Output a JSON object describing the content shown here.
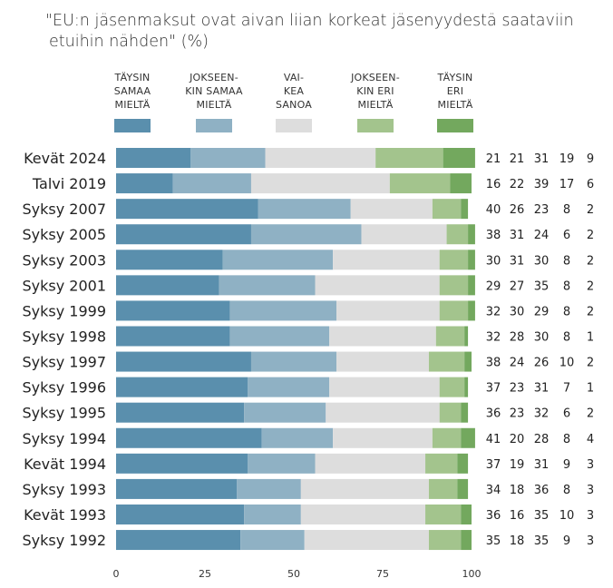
{
  "chart_data": {
    "type": "bar",
    "orientation": "horizontal",
    "stacked": true,
    "title_line1": "\"EU:n jäsenmaksut ovat aivan liian korkeat jäsenyydestä saataviin",
    "title_line2": "etuihin nähden\" (%)",
    "categories": [
      "Kevät 2024",
      "Talvi 2019",
      "Syksy 2007",
      "Syksy 2005",
      "Syksy 2003",
      "Syksy 2001",
      "Syksy 1999",
      "Syksy 1998",
      "Syksy 1997",
      "Syksy 1996",
      "Syksy 1995",
      "Syksy 1994",
      "Kevät 1994",
      "Syksy 1993",
      "Kevät 1993",
      "Syksy 1992"
    ],
    "series": [
      {
        "name": [
          "TÄYSIN",
          "SAMAA",
          "MIELTÄ"
        ],
        "color": "#5a8fad",
        "values": [
          21,
          16,
          40,
          38,
          30,
          29,
          32,
          32,
          38,
          37,
          36,
          41,
          37,
          34,
          36,
          35
        ]
      },
      {
        "name": [
          "JOKSEEN-",
          "KIN SAMAA",
          "MIELTÄ"
        ],
        "color": "#8fb1c4",
        "values": [
          21,
          22,
          26,
          31,
          31,
          27,
          30,
          28,
          24,
          23,
          23,
          20,
          19,
          18,
          16,
          18
        ]
      },
      {
        "name": [
          "VAI-",
          "KEA",
          "SANOA"
        ],
        "color": "#dddddd",
        "values": [
          31,
          39,
          23,
          24,
          30,
          35,
          29,
          30,
          26,
          31,
          32,
          28,
          31,
          36,
          35,
          35
        ]
      },
      {
        "name": [
          "JOKSEEN-",
          "KIN ERI",
          "MIELTÄ"
        ],
        "color": "#a3c48d",
        "values": [
          19,
          17,
          8,
          6,
          8,
          8,
          8,
          8,
          10,
          7,
          6,
          8,
          9,
          8,
          10,
          9
        ]
      },
      {
        "name": [
          "TÄYSIN",
          "ERI",
          "MIELTÄ"
        ],
        "color": "#73a85e",
        "values": [
          9,
          6,
          2,
          2,
          2,
          2,
          2,
          1,
          2,
          1,
          2,
          4,
          3,
          3,
          3,
          3
        ]
      }
    ],
    "xlim": [
      0,
      100
    ],
    "xticks": [
      "0",
      "25",
      "50",
      "75",
      "100"
    ]
  }
}
